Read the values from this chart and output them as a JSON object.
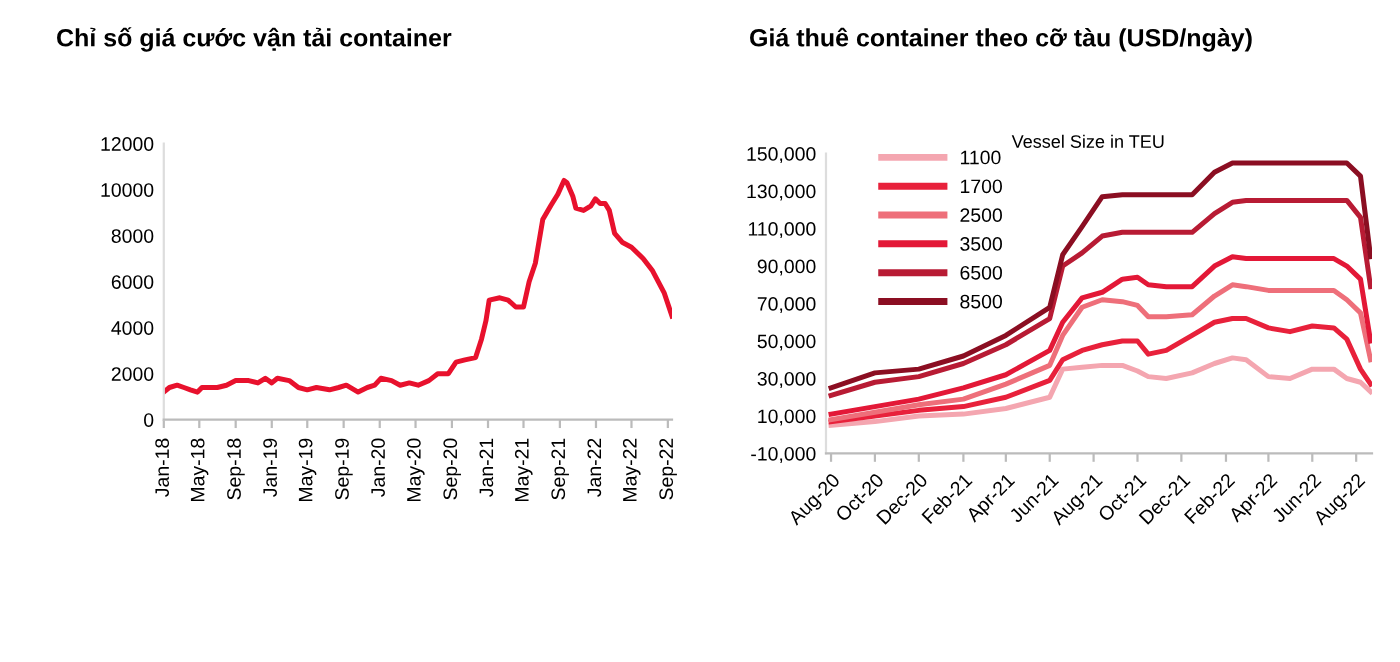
{
  "chart_data": [
    {
      "type": "line",
      "title": "Chỉ số giá cước vận tải container",
      "x": [
        "2018-01-01",
        "2018-01-20",
        "2018-02-15",
        "2018-03-10",
        "2018-04-01",
        "2018-04-25",
        "2018-05-10",
        "2018-07-01",
        "2018-08-01",
        "2018-09-01",
        "2018-10-15",
        "2018-11-15",
        "2018-12-10",
        "2019-01-01",
        "2019-01-20",
        "2019-03-01",
        "2019-04-01",
        "2019-05-01",
        "2019-06-01",
        "2019-07-15",
        "2019-08-15",
        "2019-09-10",
        "2019-10-20",
        "2019-11-20",
        "2019-12-15",
        "2020-01-05",
        "2020-02-10",
        "2020-03-10",
        "2020-04-10",
        "2020-05-10",
        "2020-06-15",
        "2020-07-15",
        "2020-08-20",
        "2020-09-15",
        "2020-10-15",
        "2020-11-20",
        "2020-12-10",
        "2020-12-25",
        "2021-01-05",
        "2021-02-10",
        "2021-03-10",
        "2021-04-05",
        "2021-05-01",
        "2021-05-20",
        "2021-06-10",
        "2021-07-05",
        "2021-08-01",
        "2021-08-25",
        "2021-09-15",
        "2021-09-25",
        "2021-10-15",
        "2021-10-25",
        "2021-11-20",
        "2021-12-15",
        "2021-12-30",
        "2022-01-15",
        "2022-02-01",
        "2022-02-15",
        "2022-03-05",
        "2022-04-01",
        "2022-05-01",
        "2022-06-10",
        "2022-07-10",
        "2022-08-20",
        "2022-09-15"
      ],
      "series": [
        {
          "color": "#e8112d",
          "values": [
            1200,
            1400,
            1500,
            1400,
            1300,
            1200,
            1400,
            1400,
            1500,
            1700,
            1700,
            1600,
            1800,
            1600,
            1800,
            1700,
            1400,
            1300,
            1400,
            1300,
            1400,
            1500,
            1200,
            1400,
            1500,
            1800,
            1700,
            1500,
            1600,
            1500,
            1700,
            2000,
            2000,
            2500,
            2600,
            2700,
            3500,
            4300,
            5200,
            5300,
            5200,
            4900,
            4900,
            6000,
            6800,
            8700,
            9300,
            9800,
            10400,
            10300,
            9700,
            9200,
            9100,
            9300,
            9600,
            9400,
            9400,
            9100,
            8100,
            7700,
            7500,
            7000,
            6500,
            5500,
            4500
          ]
        }
      ],
      "xlim": [
        "2018-01-01",
        "2022-09-15"
      ],
      "xticks": [
        {
          "value": "2018-01",
          "label": "Jan-18"
        },
        {
          "value": "2018-05",
          "label": "May-18"
        },
        {
          "value": "2018-09",
          "label": "Sep-18"
        },
        {
          "value": "2019-01",
          "label": "Jan-19"
        },
        {
          "value": "2019-05",
          "label": "May-19"
        },
        {
          "value": "2019-09",
          "label": "Sep-19"
        },
        {
          "value": "2020-01",
          "label": "Jan-20"
        },
        {
          "value": "2020-05",
          "label": "May-20"
        },
        {
          "value": "2020-09",
          "label": "Sep-20"
        },
        {
          "value": "2021-01",
          "label": "Jan-21"
        },
        {
          "value": "2021-05",
          "label": "May-21"
        },
        {
          "value": "2021-09",
          "label": "Sep-21"
        },
        {
          "value": "2022-01",
          "label": "Jan-22"
        },
        {
          "value": "2022-05",
          "label": "May-22"
        },
        {
          "value": "2022-09",
          "label": "Sep-22"
        }
      ],
      "ylim": [
        0,
        12000
      ],
      "yticks": [
        0,
        2000,
        4000,
        6000,
        8000,
        10000,
        12000
      ],
      "grid": false,
      "legend": false
    },
    {
      "type": "line",
      "title": "Giá thuê container theo cỡ tàu (USD/ngày)",
      "legend_title": "Vessel Size in TEU",
      "x": [
        "2020-08-01",
        "2020-10-01",
        "2020-12-01",
        "2021-02-01",
        "2021-04-01",
        "2021-06-01",
        "2021-06-19",
        "2021-07-16",
        "2021-08-13",
        "2021-09-10",
        "2021-10-01",
        "2021-10-16",
        "2021-11-10",
        "2021-12-16",
        "2022-01-16",
        "2022-02-10",
        "2022-03-01",
        "2022-04-01",
        "2022-05-01",
        "2022-06-01",
        "2022-07-01",
        "2022-07-19",
        "2022-08-07",
        "2022-08-21"
      ],
      "series": [
        {
          "name": "1100",
          "color": "#f4a6b0",
          "values": [
            5000,
            7000,
            10000,
            11000,
            14000,
            20000,
            35000,
            36000,
            37000,
            37000,
            34000,
            31000,
            30000,
            33000,
            38000,
            41000,
            40000,
            31000,
            30000,
            35000,
            35000,
            30000,
            28000,
            23000
          ]
        },
        {
          "name": "1700",
          "color": "#e8213b",
          "values": [
            7000,
            10000,
            13000,
            15000,
            20000,
            29000,
            40000,
            45000,
            48000,
            50000,
            50000,
            43000,
            45000,
            53000,
            60000,
            62000,
            62000,
            57000,
            55000,
            58000,
            57000,
            51000,
            35000,
            27000
          ]
        },
        {
          "name": "2500",
          "color": "#ee6f7a",
          "values": [
            8000,
            12000,
            16000,
            19000,
            27000,
            37000,
            53000,
            68000,
            72000,
            71000,
            69000,
            63000,
            63000,
            64000,
            74000,
            80000,
            79000,
            77000,
            77000,
            77000,
            77000,
            72000,
            65000,
            40000
          ]
        },
        {
          "name": "3500",
          "color": "#e31837",
          "values": [
            11000,
            15000,
            19000,
            25000,
            32000,
            45000,
            60000,
            73000,
            76000,
            83000,
            84000,
            80000,
            79000,
            79000,
            90000,
            95000,
            94000,
            94000,
            94000,
            94000,
            94000,
            90000,
            83000,
            50000
          ]
        },
        {
          "name": "6500",
          "color": "#b81b34",
          "values": [
            21000,
            28000,
            31000,
            38000,
            48000,
            62000,
            90000,
            97000,
            106000,
            108000,
            108000,
            108000,
            108000,
            108000,
            118000,
            124000,
            125000,
            125000,
            125000,
            125000,
            125000,
            125000,
            116000,
            79000
          ]
        },
        {
          "name": "8500",
          "color": "#8b0e22",
          "values": [
            25000,
            33000,
            35000,
            42000,
            53000,
            68000,
            96000,
            111000,
            127000,
            128000,
            128000,
            128000,
            128000,
            128000,
            140000,
            145000,
            145000,
            145000,
            145000,
            145000,
            145000,
            145000,
            138000,
            95000
          ]
        }
      ],
      "xlim": [
        "2020-07-25",
        "2022-08-23"
      ],
      "xticks": [
        {
          "value": "2020-08",
          "label": "Aug-20"
        },
        {
          "value": "2020-10",
          "label": "Oct-20"
        },
        {
          "value": "2020-12",
          "label": "Dec-20"
        },
        {
          "value": "2021-02",
          "label": "Feb-21"
        },
        {
          "value": "2021-04",
          "label": "Apr-21"
        },
        {
          "value": "2021-06",
          "label": "Jun-21"
        },
        {
          "value": "2021-08",
          "label": "Aug-21"
        },
        {
          "value": "2021-10",
          "label": "Oct-21"
        },
        {
          "value": "2021-12",
          "label": "Dec-21"
        },
        {
          "value": "2022-02",
          "label": "Feb-22"
        },
        {
          "value": "2022-04",
          "label": "Apr-22"
        },
        {
          "value": "2022-06",
          "label": "Jun-22"
        },
        {
          "value": "2022-08",
          "label": "Aug-22"
        }
      ],
      "ylim": [
        -10000,
        150000
      ],
      "yticks": [
        {
          "value": -10000,
          "label": "-10,000"
        },
        {
          "value": 10000,
          "label": "10,000"
        },
        {
          "value": 30000,
          "label": "30,000"
        },
        {
          "value": 50000,
          "label": "50,000"
        },
        {
          "value": 70000,
          "label": "70,000"
        },
        {
          "value": 90000,
          "label": "90,000"
        },
        {
          "value": 110000,
          "label": "110,000"
        },
        {
          "value": 130000,
          "label": "130,000"
        },
        {
          "value": 150000,
          "label": "150,000"
        }
      ],
      "grid": false,
      "legend": "top left"
    }
  ]
}
